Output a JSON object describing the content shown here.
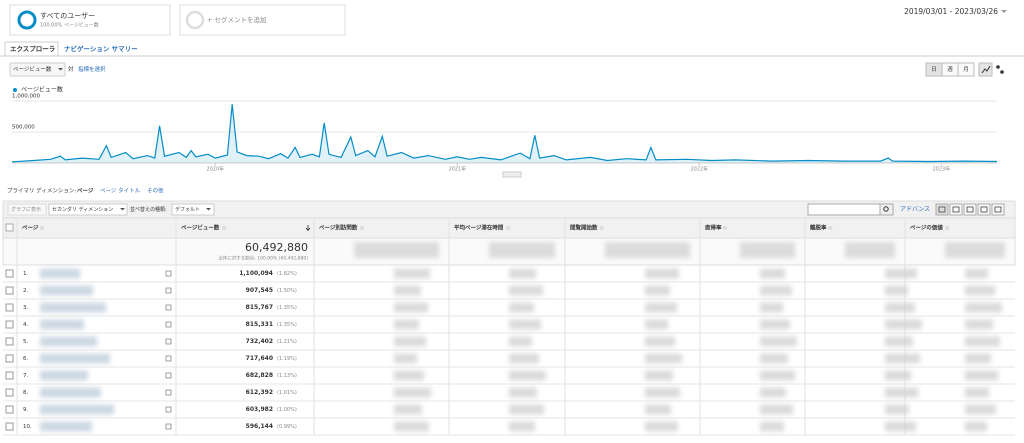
{
  "segments": {
    "active": {
      "name": "すべてのユーザー",
      "share": "100.00% ページビュー数"
    },
    "add": "+ セグメントを追加"
  },
  "date_range": "2019/03/01 - 2023/03/26",
  "tabs": [
    "エクスプローラ",
    "ナビゲーション サマリー"
  ],
  "metric_selector": {
    "metric": "ページビュー数",
    "vs": "対",
    "choose": "指標を選択"
  },
  "interval_buttons": [
    "日",
    "週",
    "月"
  ],
  "chart_data": {
    "type": "line",
    "series": [
      {
        "name": "ページビュー数",
        "color": "#058dc7",
        "x": [
          2019.16,
          2019.25,
          2019.32,
          2019.36,
          2019.38,
          2019.45,
          2019.52,
          2019.55,
          2019.57,
          2019.63,
          2019.66,
          2019.72,
          2019.75,
          2019.77,
          2019.79,
          2019.85,
          2019.88,
          2019.9,
          2019.92,
          2019.97,
          2020.0,
          2020.05,
          2020.07,
          2020.09,
          2020.13,
          2020.18,
          2020.22,
          2020.27,
          2020.3,
          2020.33,
          2020.35,
          2020.4,
          2020.43,
          2020.45,
          2020.47,
          2020.52,
          2020.56,
          2020.58,
          2020.63,
          2020.66,
          2020.69,
          2020.71,
          2020.77,
          2020.82,
          2020.88,
          2020.95,
          2021.0,
          2021.05,
          2021.1,
          2021.18,
          2021.26,
          2021.3,
          2021.32,
          2021.34,
          2021.4,
          2021.45,
          2021.55,
          2021.62,
          2021.7,
          2021.78,
          2021.8,
          2021.82,
          2021.95,
          2022.05,
          2022.15,
          2022.3,
          2022.45,
          2022.6,
          2022.75,
          2022.78,
          2022.8,
          2022.95,
          2023.1,
          2023.23
        ],
        "values": [
          20000,
          40000,
          60000,
          110000,
          50000,
          80000,
          60000,
          280000,
          90000,
          170000,
          70000,
          120000,
          80000,
          600000,
          110000,
          170000,
          90000,
          200000,
          100000,
          140000,
          80000,
          130000,
          950000,
          180000,
          120000,
          110000,
          70000,
          150000,
          80000,
          250000,
          90000,
          140000,
          100000,
          650000,
          140000,
          90000,
          420000,
          120000,
          200000,
          100000,
          430000,
          110000,
          170000,
          80000,
          120000,
          60000,
          100000,
          60000,
          90000,
          50000,
          160000,
          70000,
          450000,
          80000,
          120000,
          50000,
          90000,
          40000,
          70000,
          50000,
          250000,
          50000,
          60000,
          40000,
          50000,
          30000,
          40000,
          30000,
          30000,
          80000,
          30000,
          25000,
          30000,
          25000
        ]
      }
    ],
    "xlim": [
      2019.16,
      2023.23
    ],
    "xticks": [
      {
        "value": 2020,
        "label": "2020年"
      },
      {
        "value": 2021,
        "label": "2021年"
      },
      {
        "value": 2022,
        "label": "2022年"
      },
      {
        "value": 2023,
        "label": "2023年"
      }
    ],
    "ylim": [
      0,
      1100000
    ],
    "yticks": [
      {
        "value": 1000000,
        "label": "1,000,000"
      },
      {
        "value": 500000,
        "label": "500,000"
      }
    ],
    "grid": true
  },
  "dimension_bar": {
    "label": "プライマリ ディメンション:",
    "active": "ページ",
    "options": [
      "ページ タイトル",
      "その他"
    ]
  },
  "toolbar": {
    "plot_rows": "グラフに表示",
    "secondary": "セカンダリ ディメンション",
    "sort_label": "並べ替えの種類:",
    "sort": "デフォルト",
    "advanced": "アドバンス"
  },
  "table": {
    "headers": [
      "ページ",
      "ページビュー数",
      "ページ別訪問数",
      "平均ページ滞在時間",
      "閲覧開始数",
      "直帰率",
      "離脱率",
      "ページの価値"
    ],
    "total": {
      "value": "60,492,880",
      "share": "全体に対する割合: 100.00% (60,492,880)"
    },
    "rows": [
      [
        "1.",
        "1,100,094",
        "(1.82%)"
      ],
      [
        "2.",
        "907,545",
        "(1.50%)"
      ],
      [
        "3.",
        "815,767",
        "(1.35%)"
      ],
      [
        "4.",
        "815,331",
        "(1.35%)"
      ],
      [
        "5.",
        "732,402",
        "(1.21%)"
      ],
      [
        "6.",
        "717,640",
        "(1.19%)"
      ],
      [
        "7.",
        "682,828",
        "(1.13%)"
      ],
      [
        "8.",
        "612,392",
        "(1.01%)"
      ],
      [
        "9.",
        "603,982",
        "(1.00%)"
      ],
      [
        "10.",
        "596,144",
        "(0.99%)"
      ]
    ]
  }
}
